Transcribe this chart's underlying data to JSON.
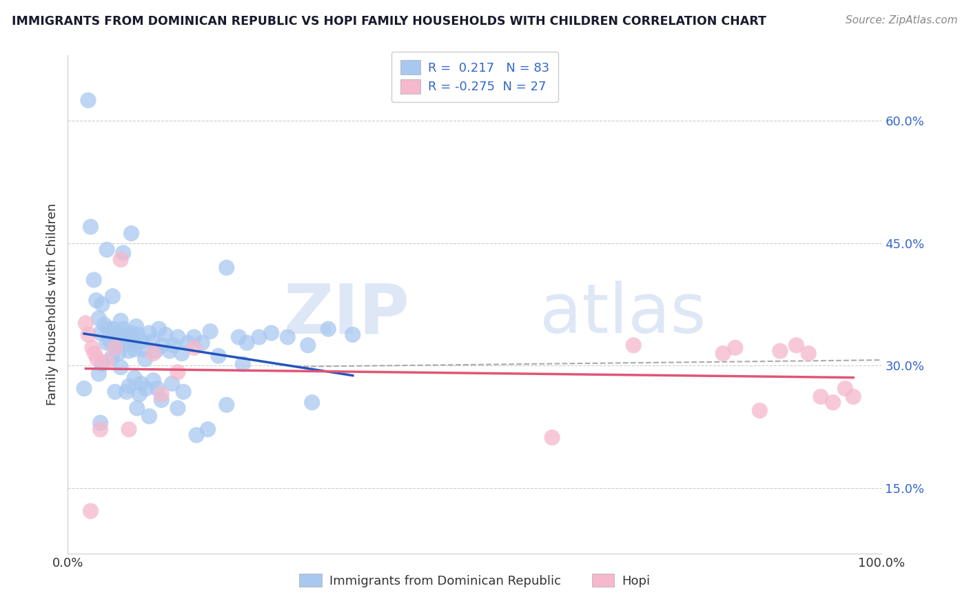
{
  "title": "IMMIGRANTS FROM DOMINICAN REPUBLIC VS HOPI FAMILY HOUSEHOLDS WITH CHILDREN CORRELATION CHART",
  "source": "Source: ZipAtlas.com",
  "ylabel": "Family Households with Children",
  "legend_label1": "Immigrants from Dominican Republic",
  "legend_label2": "Hopi",
  "r1": 0.217,
  "n1": 83,
  "r2": -0.275,
  "n2": 27,
  "blue_color": "#a8c8f0",
  "pink_color": "#f5b8cc",
  "blue_line_color": "#2255bb",
  "pink_line_color": "#e05575",
  "gray_line_color": "#bbbbbb",
  "xlim": [
    0.0,
    1.0
  ],
  "ylim": [
    0.07,
    0.68
  ],
  "ytick_vals": [
    0.15,
    0.3,
    0.45,
    0.6
  ],
  "ytick_labels": [
    "15.0%",
    "30.0%",
    "45.0%",
    "60.0%"
  ],
  "xtick_vals": [
    0.0,
    0.1,
    0.2,
    0.3,
    0.4,
    0.5,
    0.6,
    0.7,
    0.8,
    0.9,
    1.0
  ],
  "xtick_labels": [
    "0.0%",
    "",
    "",
    "",
    "",
    "",
    "",
    "",
    "",
    "",
    "100.0%"
  ],
  "watermark_zip": "ZIP",
  "watermark_atlas": "atlas",
  "blue_x": [
    0.025,
    0.028,
    0.032,
    0.035,
    0.038,
    0.04,
    0.042,
    0.045,
    0.048,
    0.05,
    0.052,
    0.054,
    0.056,
    0.058,
    0.06,
    0.062,
    0.065,
    0.068,
    0.07,
    0.072,
    0.075,
    0.078,
    0.08,
    0.082,
    0.084,
    0.086,
    0.09,
    0.092,
    0.095,
    0.1,
    0.104,
    0.108,
    0.112,
    0.116,
    0.12,
    0.125,
    0.13,
    0.135,
    0.14,
    0.148,
    0.155,
    0.165,
    0.175,
    0.185,
    0.195,
    0.21,
    0.22,
    0.235,
    0.25,
    0.27,
    0.295,
    0.32,
    0.35,
    0.02,
    0.038,
    0.055,
    0.068,
    0.078,
    0.09,
    0.105,
    0.115,
    0.048,
    0.062,
    0.075,
    0.088,
    0.042,
    0.058,
    0.072,
    0.082,
    0.096,
    0.11,
    0.128,
    0.142,
    0.158,
    0.172,
    0.195,
    0.215,
    0.3,
    0.04,
    0.065,
    0.085,
    0.1,
    0.135
  ],
  "blue_y": [
    0.625,
    0.47,
    0.405,
    0.38,
    0.358,
    0.34,
    0.375,
    0.35,
    0.328,
    0.345,
    0.33,
    0.31,
    0.345,
    0.335,
    0.325,
    0.315,
    0.355,
    0.345,
    0.336,
    0.326,
    0.318,
    0.34,
    0.33,
    0.32,
    0.348,
    0.338,
    0.33,
    0.32,
    0.308,
    0.34,
    0.33,
    0.318,
    0.345,
    0.325,
    0.338,
    0.318,
    0.325,
    0.335,
    0.315,
    0.328,
    0.335,
    0.328,
    0.342,
    0.312,
    0.42,
    0.335,
    0.328,
    0.335,
    0.34,
    0.335,
    0.325,
    0.345,
    0.338,
    0.272,
    0.29,
    0.385,
    0.438,
    0.462,
    0.278,
    0.282,
    0.258,
    0.442,
    0.338,
    0.275,
    0.265,
    0.302,
    0.268,
    0.268,
    0.285,
    0.272,
    0.272,
    0.278,
    0.268,
    0.215,
    0.222,
    0.252,
    0.302,
    0.255,
    0.23,
    0.298,
    0.248,
    0.238,
    0.248
  ],
  "pink_x": [
    0.022,
    0.025,
    0.028,
    0.03,
    0.033,
    0.036,
    0.04,
    0.048,
    0.058,
    0.065,
    0.075,
    0.105,
    0.115,
    0.135,
    0.155,
    0.595,
    0.695,
    0.805,
    0.82,
    0.85,
    0.875,
    0.895,
    0.91,
    0.925,
    0.94,
    0.955,
    0.965
  ],
  "pink_y": [
    0.352,
    0.338,
    0.122,
    0.322,
    0.315,
    0.308,
    0.222,
    0.305,
    0.322,
    0.43,
    0.222,
    0.315,
    0.265,
    0.292,
    0.322,
    0.212,
    0.325,
    0.315,
    0.322,
    0.245,
    0.318,
    0.325,
    0.315,
    0.262,
    0.255,
    0.272,
    0.262
  ]
}
